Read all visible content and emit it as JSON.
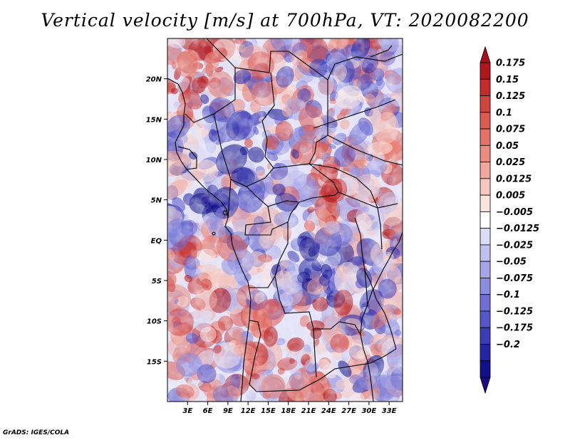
{
  "title": "Vertical velocity [m/s] at 700hPa, VT: 2020082200",
  "credit": "GrADS: IGES/COLA",
  "map": {
    "variable": "Vertical velocity",
    "units": "m/s",
    "level": "700hPa",
    "valid_time": "2020082200",
    "lat_labels": [
      "20N",
      "15N",
      "10N",
      "5N",
      "EQ",
      "5S",
      "10S",
      "15S"
    ],
    "lon_labels": [
      "3E",
      "6E",
      "9E",
      "12E",
      "15E",
      "18E",
      "21E",
      "24E",
      "27E",
      "30E",
      "33E"
    ],
    "lat_range": [
      -20,
      25
    ],
    "lon_range": [
      0,
      35
    ]
  },
  "colorbar": {
    "labels": [
      "0.175",
      "0.15",
      "0.125",
      "0.1",
      "0.075",
      "0.05",
      "0.025",
      "0.0125",
      "0.005",
      "−0.005",
      "−0.0125",
      "−0.025",
      "−0.05",
      "−0.075",
      "−0.1",
      "−0.125",
      "−0.175",
      "−0.2"
    ],
    "colors": [
      "#b0161c",
      "#c42b2a",
      "#d2443e",
      "#dc5a52",
      "#e47468",
      "#eb8c80",
      "#f0a89c",
      "#f6c8bf",
      "#fbe4df",
      "#ffffff",
      "#dcdcf6",
      "#c0c0ef",
      "#a5a5e8",
      "#8c8ce0",
      "#7070d4",
      "#5656c8",
      "#3c3cb8",
      "#2424a6",
      "#10108c"
    ],
    "top_arrow_color": "#a51219",
    "bottom_arrow_color": "#1a0a86"
  }
}
